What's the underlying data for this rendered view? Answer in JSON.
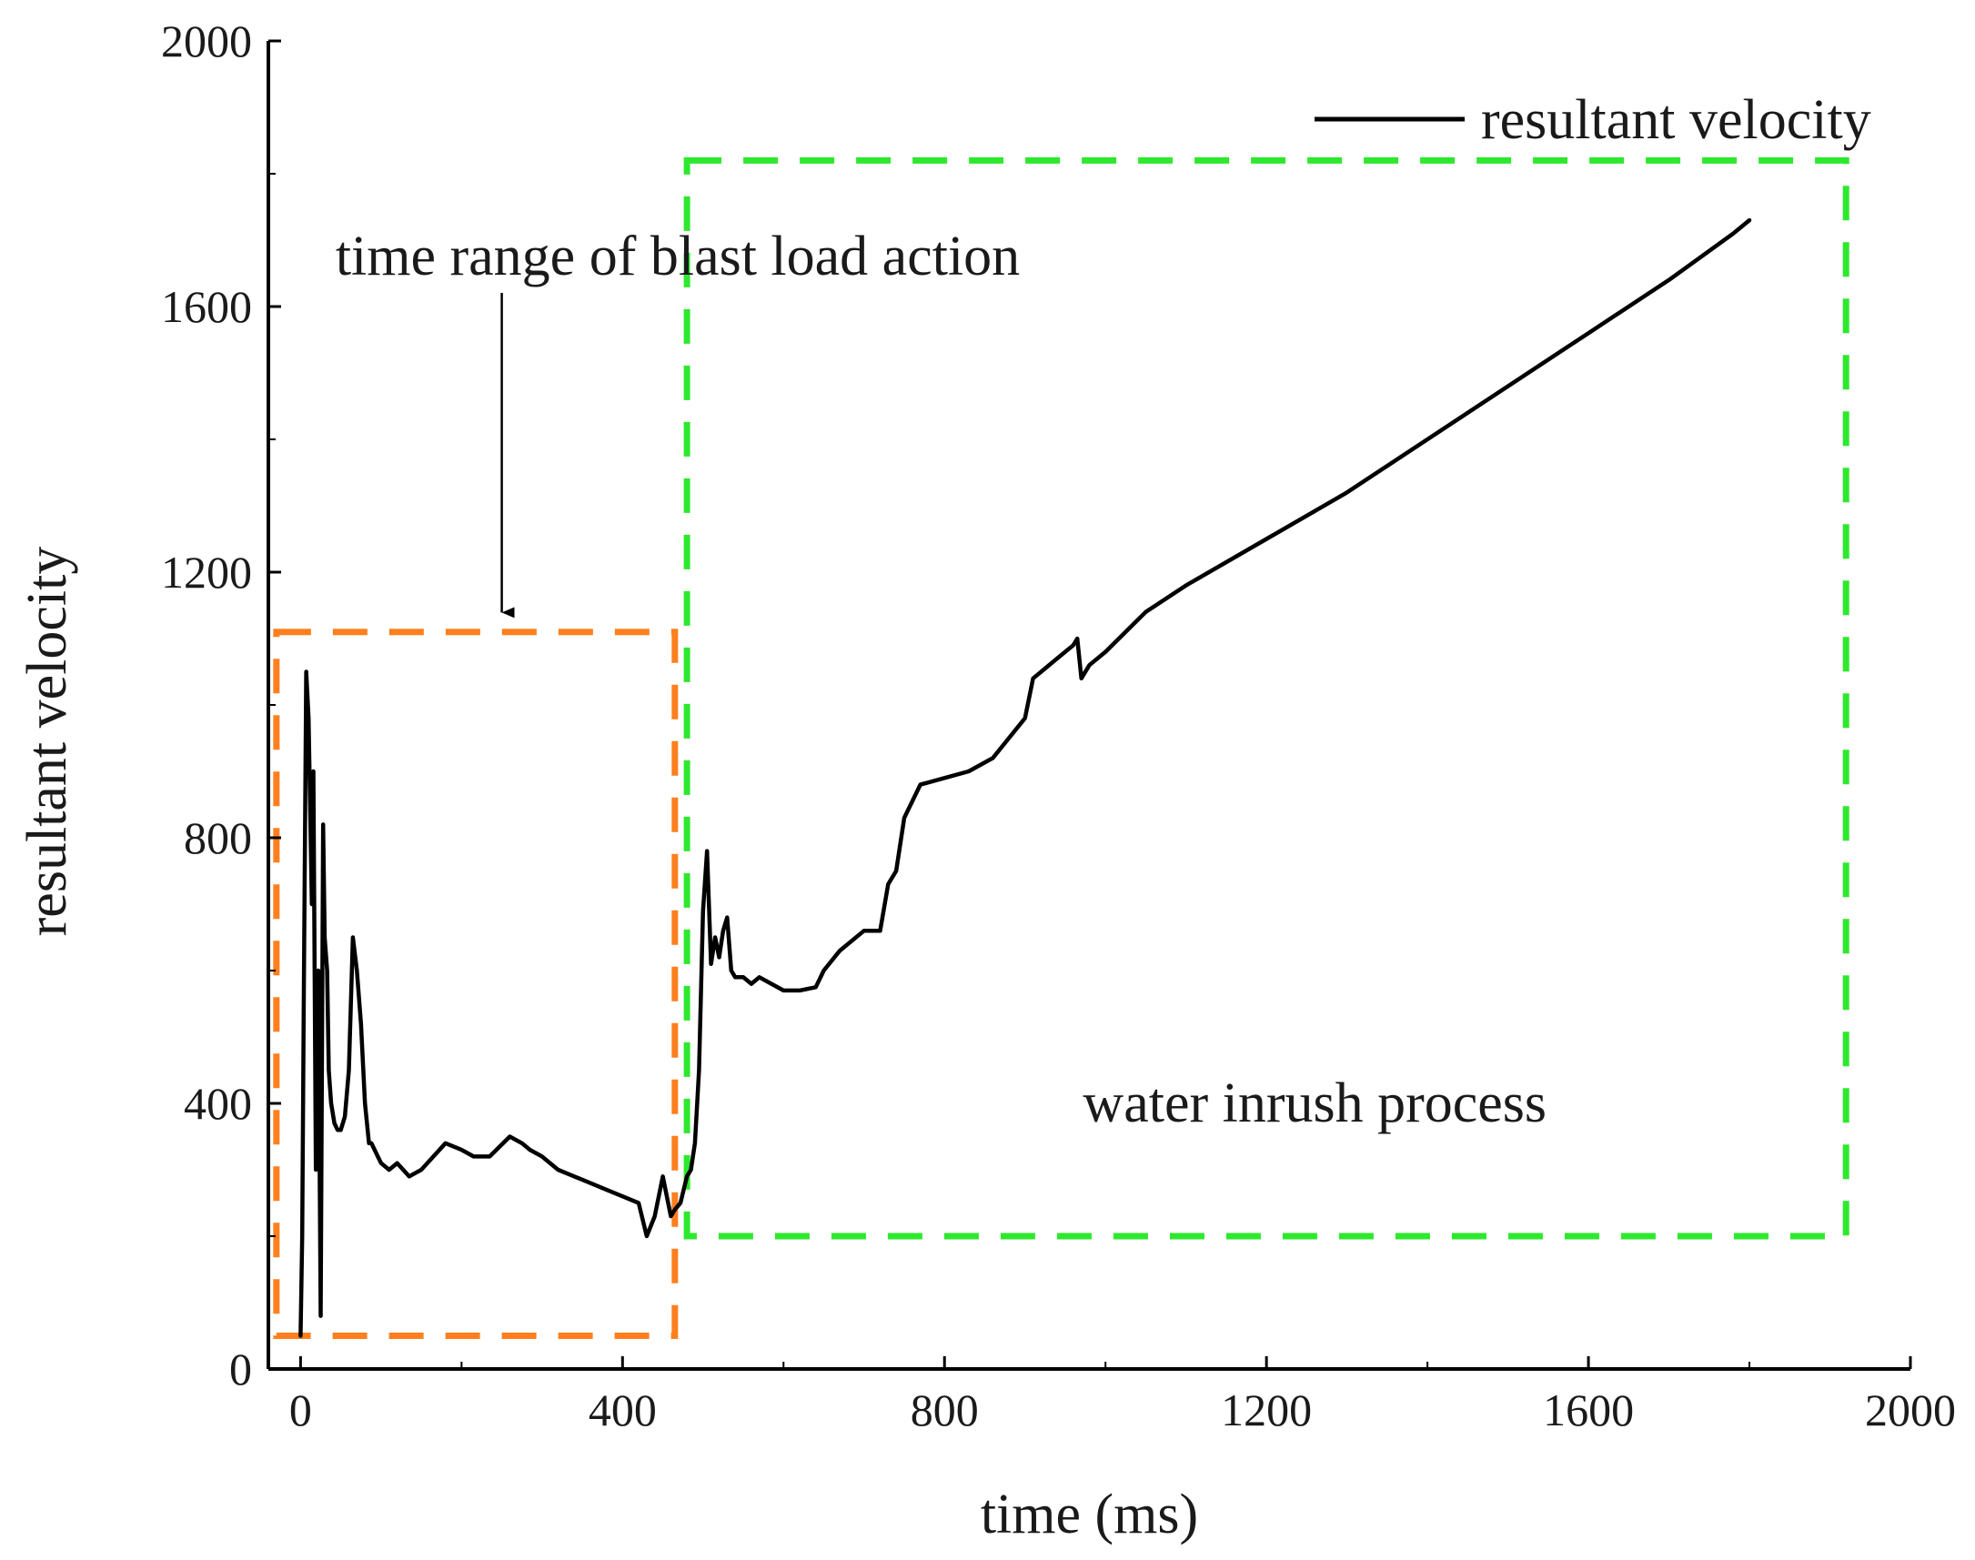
{
  "chart_data": {
    "type": "line",
    "title": "",
    "xlabel": "time (ms)",
    "ylabel": "resultant velocity",
    "xlim": [
      -40,
      2000
    ],
    "ylim": [
      0,
      2000
    ],
    "xticks": [
      0,
      400,
      800,
      1200,
      1600,
      2000
    ],
    "yticks": [
      0,
      400,
      800,
      1200,
      1600,
      2000
    ],
    "grid": false,
    "legend": {
      "position": "top-right",
      "entries": [
        "resultant velocity"
      ]
    },
    "series": [
      {
        "name": "resultant velocity",
        "color": "#000000",
        "x": [
          0,
          2,
          4,
          7,
          10,
          14,
          16,
          19,
          22,
          25,
          28,
          30,
          33,
          35,
          38,
          42,
          46,
          50,
          55,
          60,
          65,
          70,
          75,
          80,
          85,
          88,
          92,
          96,
          100,
          110,
          120,
          135,
          150,
          165,
          180,
          200,
          215,
          235,
          260,
          275,
          285,
          300,
          320,
          340,
          360,
          380,
          400,
          420,
          430,
          440,
          450,
          455,
          460,
          465,
          472,
          480,
          485,
          490,
          495,
          500,
          505,
          510,
          515,
          520,
          525,
          530,
          535,
          540,
          550,
          560,
          570,
          585,
          600,
          620,
          640,
          650,
          670,
          700,
          720,
          730,
          740,
          750,
          770,
          800,
          830,
          860,
          880,
          900,
          910,
          940,
          960,
          965,
          970,
          980,
          1000,
          1050,
          1100,
          1200,
          1300,
          1400,
          1500,
          1600,
          1700,
          1780,
          1800
        ],
        "y": [
          50,
          200,
          550,
          1050,
          980,
          700,
          900,
          300,
          600,
          80,
          820,
          650,
          600,
          450,
          400,
          370,
          360,
          360,
          380,
          450,
          650,
          600,
          520,
          400,
          340,
          340,
          330,
          320,
          310,
          300,
          310,
          290,
          300,
          320,
          340,
          330,
          320,
          320,
          350,
          340,
          330,
          320,
          300,
          290,
          280,
          270,
          260,
          250,
          200,
          230,
          290,
          260,
          230,
          240,
          250,
          290,
          300,
          340,
          450,
          690,
          780,
          610,
          650,
          620,
          660,
          680,
          600,
          590,
          590,
          580,
          590,
          580,
          570,
          570,
          575,
          600,
          630,
          660,
          660,
          730,
          750,
          830,
          880,
          890,
          900,
          920,
          950,
          980,
          1040,
          1070,
          1090,
          1100,
          1040,
          1060,
          1080,
          1140,
          1180,
          1250,
          1320,
          1400,
          1480,
          1560,
          1640,
          1710,
          1730
        ]
      }
    ],
    "annotations": [
      {
        "text": "time range of blast load action",
        "arrow_to": [
          250,
          1120
        ],
        "label_at": [
          250,
          1660
        ]
      },
      {
        "text": "water inrush process",
        "label_at": [
          1260,
          400
        ]
      }
    ],
    "regions": [
      {
        "name": "blast-load-range",
        "x": [
          -30,
          465
        ],
        "y": [
          50,
          1110
        ],
        "color": "#ff7f1e",
        "style": "dashed"
      },
      {
        "name": "water-inrush-range",
        "x": [
          480,
          1920
        ],
        "y": [
          200,
          1820
        ],
        "color": "#2ee82e",
        "style": "dashed"
      }
    ]
  }
}
